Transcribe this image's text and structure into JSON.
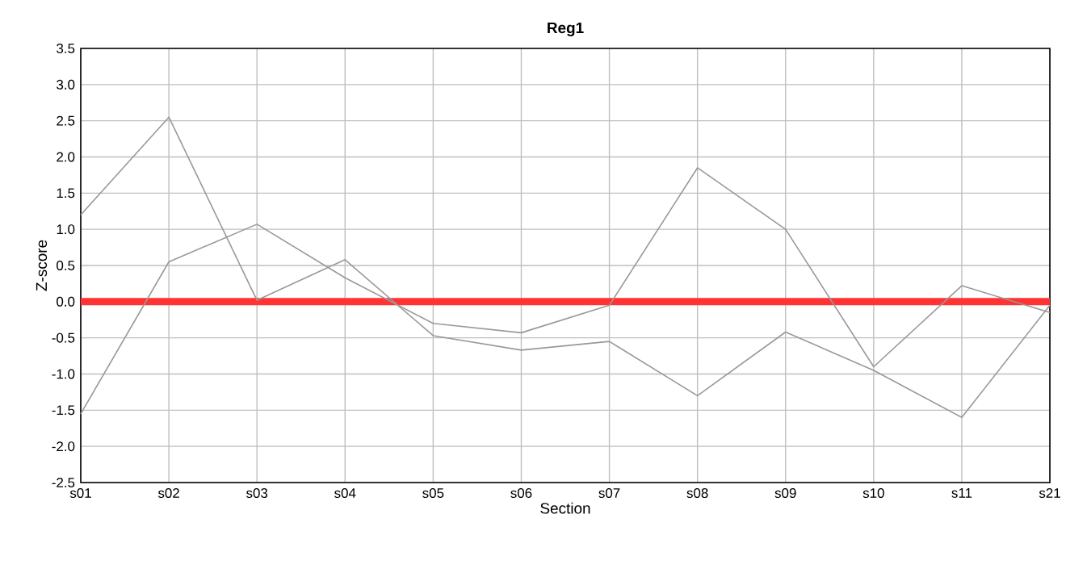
{
  "chart_data": {
    "type": "line",
    "title": "Reg1",
    "xlabel": "Section",
    "ylabel": "Z-score",
    "categories": [
      "s01",
      "s02",
      "s03",
      "s04",
      "s05",
      "s06",
      "s07",
      "s08",
      "s09",
      "s10",
      "s11",
      "s21"
    ],
    "series": [
      {
        "color": "#999999",
        "values": [
          1.2,
          2.55,
          0.02,
          0.58,
          -0.47,
          -0.67,
          -0.55,
          -1.3,
          -0.42,
          -0.95,
          -1.6,
          -0.05
        ]
      },
      {
        "color": "#999999",
        "values": [
          -1.55,
          0.55,
          1.07,
          0.33,
          -0.3,
          -0.43,
          -0.05,
          1.85,
          1.0,
          -0.9,
          0.22,
          -0.15
        ]
      }
    ],
    "ylim": [
      -2.5,
      3.5
    ],
    "yticks": [
      {
        "value": -2.5,
        "label": "-2.5"
      },
      {
        "value": -2,
        "label": "-2.0"
      },
      {
        "value": -1.5,
        "label": "-1.5"
      },
      {
        "value": -1,
        "label": "-1.0"
      },
      {
        "value": -0.5,
        "label": "-0.5"
      },
      {
        "value": 0,
        "label": "0.0"
      },
      {
        "value": 0.5,
        "label": "0.5"
      },
      {
        "value": 1,
        "label": "1.0"
      },
      {
        "value": 1.5,
        "label": "1.5"
      },
      {
        "value": 2,
        "label": "2.0"
      },
      {
        "value": 2.5,
        "label": "2.5"
      },
      {
        "value": 3,
        "label": "3.0"
      },
      {
        "value": 3.5,
        "label": "3.5"
      }
    ],
    "ref_lines": [
      {
        "axis": "y",
        "value": 0,
        "color": "#ff3333"
      }
    ],
    "grid": true
  }
}
